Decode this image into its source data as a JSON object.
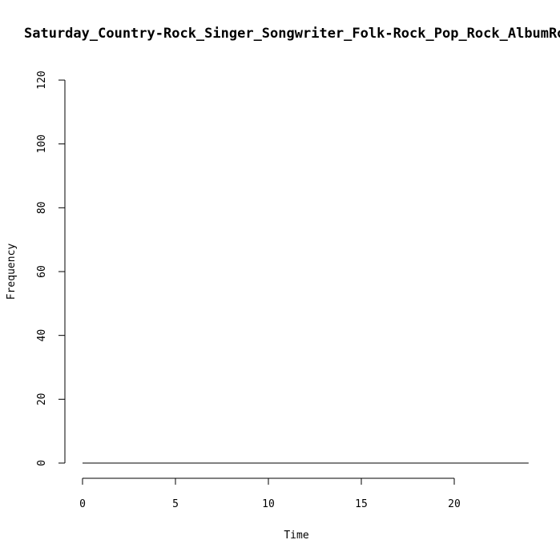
{
  "chart_data": {
    "type": "line",
    "title": "Saturday_Country-Rock_Singer_Songwriter_Folk-Rock_Pop_Rock_AlbumRoc",
    "xlabel": "Time",
    "ylabel": "Frequency",
    "xlim": [
      0,
      24
    ],
    "ylim": [
      0,
      120
    ],
    "x_ticks": [
      0,
      5,
      10,
      15,
      20
    ],
    "y_ticks": [
      0,
      20,
      40,
      60,
      80,
      100,
      120
    ],
    "grid": false,
    "series": [
      {
        "x": [
          0,
          1,
          2,
          3,
          4,
          5,
          6,
          7,
          8,
          9,
          10,
          11,
          12,
          13,
          14,
          15,
          16,
          17,
          18,
          19,
          20,
          21,
          22,
          23,
          24
        ],
        "values": [
          0,
          0,
          0,
          0,
          0,
          0,
          0,
          0,
          0,
          0,
          0,
          0,
          0,
          0,
          0,
          0,
          0,
          0,
          0,
          0,
          0,
          0,
          0,
          0,
          0
        ],
        "color": "#000000"
      }
    ]
  }
}
